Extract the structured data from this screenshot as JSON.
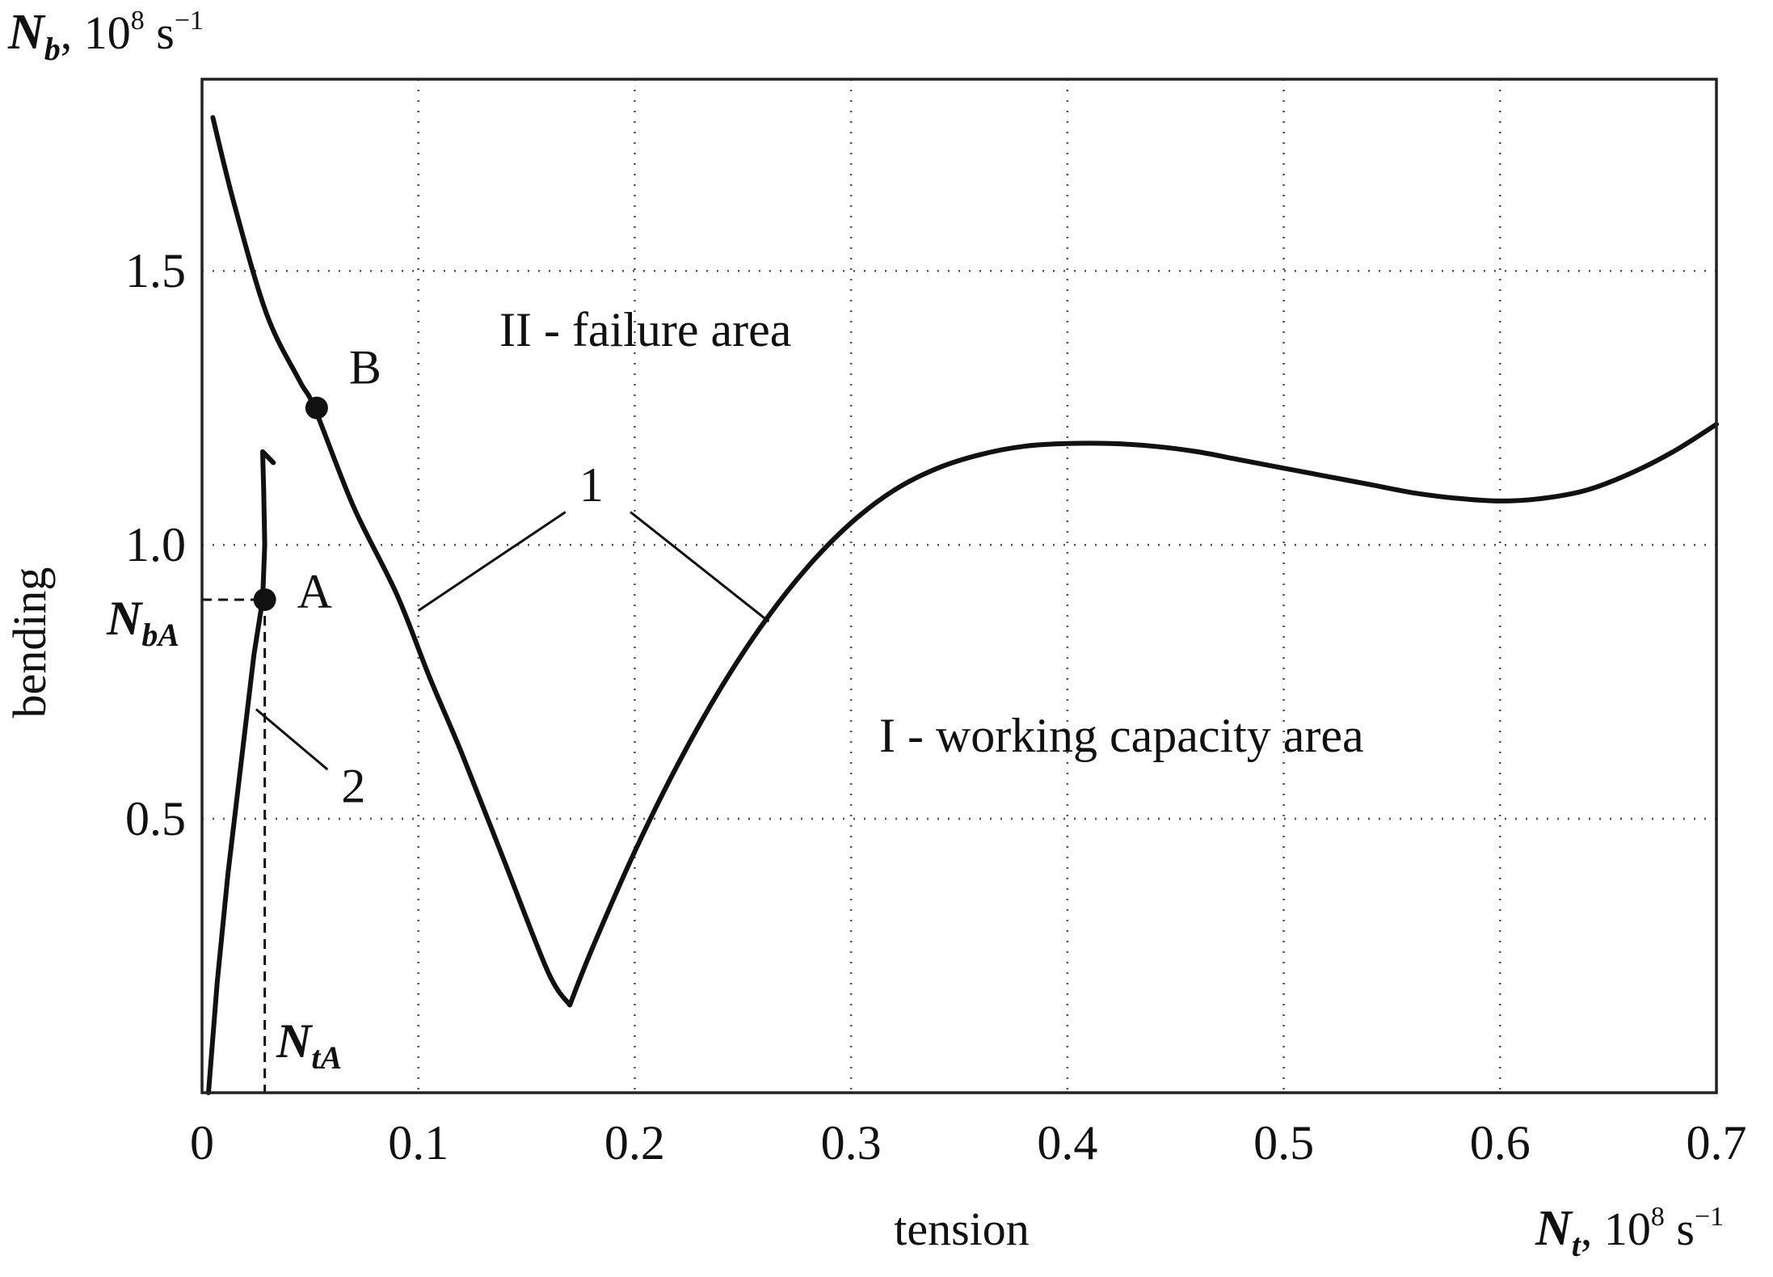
{
  "chart_data": {
    "type": "line",
    "x_unit_label": {
      "symbol": "N",
      "sub": "t",
      "unit": ", 10",
      "exp": "8",
      "unit2": " s",
      "exp2": "−1"
    },
    "y_unit_label": {
      "symbol": "N",
      "sub": "b",
      "unit": ", 10",
      "exp": "8",
      "unit2": " s",
      "exp2": "−1"
    },
    "xlabel": "tension",
    "ylabel": "bending",
    "xlim": [
      0,
      0.7
    ],
    "ylim": [
      0,
      1.85
    ],
    "grid": true,
    "x_ticks": [
      {
        "value": 0,
        "label": "0"
      },
      {
        "value": 0.1,
        "label": "0.1"
      },
      {
        "value": 0.2,
        "label": "0.2"
      },
      {
        "value": 0.3,
        "label": "0.3"
      },
      {
        "value": 0.4,
        "label": "0.4"
      },
      {
        "value": 0.5,
        "label": "0.5"
      },
      {
        "value": 0.6,
        "label": "0.6"
      },
      {
        "value": 0.7,
        "label": "0.7"
      }
    ],
    "y_ticks": [
      {
        "value": 0.5,
        "label": "0.5"
      },
      {
        "value": 1.0,
        "label": "1.0"
      },
      {
        "value": 1.5,
        "label": "1.5"
      }
    ],
    "series": [
      {
        "name": "1",
        "x": [
          0.005,
          0.015,
          0.03,
          0.045,
          0.052,
          0.07,
          0.09,
          0.105,
          0.12,
          0.14,
          0.16,
          0.17,
          0.18,
          0.2,
          0.22,
          0.24,
          0.26,
          0.28,
          0.3,
          0.32,
          0.34,
          0.36,
          0.38,
          0.4,
          0.42,
          0.44,
          0.46,
          0.48,
          0.5,
          0.52,
          0.54,
          0.56,
          0.58,
          0.6,
          0.62,
          0.64,
          0.66,
          0.68,
          0.7
        ],
        "y": [
          1.78,
          1.62,
          1.42,
          1.3,
          1.25,
          1.07,
          0.91,
          0.76,
          0.62,
          0.42,
          0.22,
          0.16,
          0.26,
          0.44,
          0.6,
          0.74,
          0.86,
          0.96,
          1.04,
          1.1,
          1.14,
          1.165,
          1.18,
          1.185,
          1.185,
          1.18,
          1.17,
          1.155,
          1.14,
          1.125,
          1.11,
          1.095,
          1.085,
          1.08,
          1.085,
          1.1,
          1.13,
          1.17,
          1.22
        ]
      },
      {
        "name": "2",
        "x": [
          0.003,
          0.007,
          0.012,
          0.018,
          0.024,
          0.028,
          0.029,
          0.0285,
          0.028,
          0.033
        ],
        "y": [
          0.0,
          0.2,
          0.4,
          0.6,
          0.8,
          0.9,
          1.0,
          1.1,
          1.17,
          1.15
        ]
      }
    ],
    "points": [
      {
        "name": "A",
        "x": 0.029,
        "y": 0.9
      },
      {
        "name": "B",
        "x": 0.053,
        "y": 1.25
      }
    ],
    "marker_labels": {
      "NbA": {
        "symbol": "N",
        "sub": "bA"
      },
      "NtA": {
        "symbol": "N",
        "sub": "tA"
      }
    },
    "annotations": {
      "failure": "II - failure area",
      "working": "I - working capacity area",
      "curve1": "1",
      "curve2": "2"
    }
  }
}
